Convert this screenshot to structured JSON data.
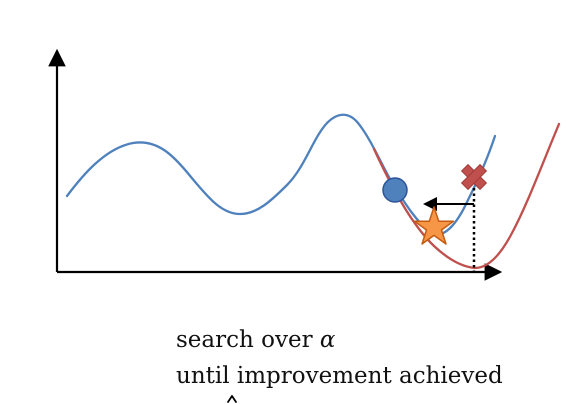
{
  "caption": {
    "line1_prefix": "search over",
    "alpha_symbol": "α",
    "line2": "until improvement achieved"
  },
  "colors": {
    "axis": "#000000",
    "objective_curve": "#4f81bd",
    "model_curve": "#c0504d",
    "current_point": "#4f81bd",
    "current_point_outline": "#2f5597",
    "rejected_point": "#c0504d",
    "accepted_point": "#f79646",
    "accepted_point_outline": "#c55a11",
    "guide_line": "#000000"
  },
  "icons": {
    "current_point": "circle-icon",
    "rejected_point": "x-mark-icon",
    "accepted_point": "star-icon"
  }
}
